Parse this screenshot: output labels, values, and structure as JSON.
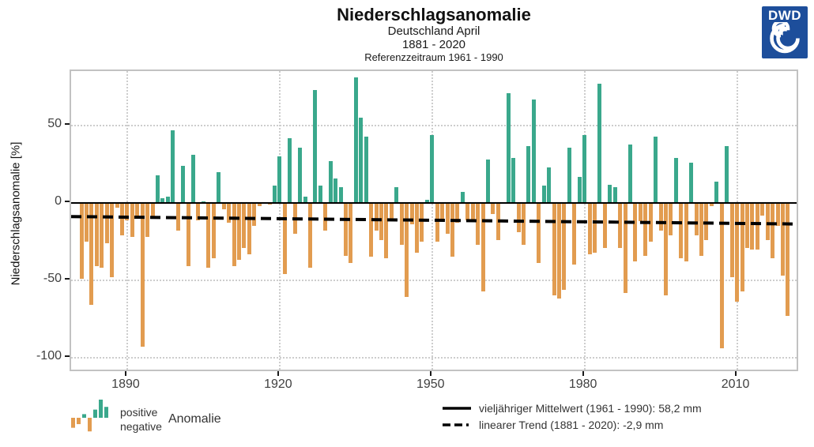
{
  "header": {
    "title": "Niederschlagsanomalie",
    "subtitle1": "Deutschland April",
    "subtitle2": "1881 - 2020",
    "subtitle3": "Referenzzeitraum 1961 - 1990"
  },
  "logo": {
    "text": "DWD",
    "color": "#1d4e9b"
  },
  "y_axis": {
    "title": "Niederschlagsanomalie [%]",
    "ticks": [
      {
        "label": "50",
        "value": 50
      },
      {
        "label": "0",
        "value": 0
      },
      {
        "label": "-50",
        "value": -50
      },
      {
        "label": "-100",
        "value": -100
      }
    ]
  },
  "x_axis": {
    "ticks": [
      {
        "label": "1890",
        "value": 1890
      },
      {
        "label": "1920",
        "value": 1920
      },
      {
        "label": "1950",
        "value": 1950
      },
      {
        "label": "1980",
        "value": 1980
      },
      {
        "label": "2010",
        "value": 2010
      }
    ]
  },
  "legend_left": {
    "positive": "positive",
    "negative": "negative",
    "anomalie": "Anomalie"
  },
  "legend_right": {
    "mean": "vieljähriger Mittelwert (1961 - 1990): 58,2 mm",
    "trend": "linearer Trend (1881 - 2020): -2,9 mm"
  },
  "chart_data": {
    "type": "bar",
    "title": "Niederschlagsanomalie",
    "subtitle": "Deutschland April 1881 - 2020, Referenzzeitraum 1961 - 1990",
    "ylabel": "Niederschlagsanomalie [%]",
    "ylim": [
      -110,
      86
    ],
    "x_start": 1881,
    "x_end": 2020,
    "years": [
      1881,
      1882,
      1883,
      1884,
      1885,
      1886,
      1887,
      1888,
      1889,
      1890,
      1891,
      1892,
      1893,
      1894,
      1895,
      1896,
      1897,
      1898,
      1899,
      1900,
      1901,
      1902,
      1903,
      1904,
      1905,
      1906,
      1907,
      1908,
      1909,
      1910,
      1911,
      1912,
      1913,
      1914,
      1915,
      1916,
      1917,
      1918,
      1919,
      1920,
      1921,
      1922,
      1923,
      1924,
      1925,
      1926,
      1927,
      1928,
      1929,
      1930,
      1931,
      1932,
      1933,
      1934,
      1935,
      1936,
      1937,
      1938,
      1939,
      1940,
      1941,
      1942,
      1943,
      1944,
      1945,
      1946,
      1947,
      1948,
      1949,
      1950,
      1951,
      1952,
      1953,
      1954,
      1955,
      1956,
      1957,
      1958,
      1959,
      1960,
      1961,
      1962,
      1963,
      1964,
      1965,
      1966,
      1967,
      1968,
      1969,
      1970,
      1971,
      1972,
      1973,
      1974,
      1975,
      1976,
      1977,
      1978,
      1979,
      1980,
      1981,
      1982,
      1983,
      1984,
      1985,
      1986,
      1987,
      1988,
      1989,
      1990,
      1991,
      1992,
      1993,
      1994,
      1995,
      1996,
      1997,
      1998,
      1999,
      2000,
      2001,
      2002,
      2003,
      2004,
      2005,
      2006,
      2007,
      2008,
      2009,
      2010,
      2011,
      2012,
      2013,
      2014,
      2015,
      2016,
      2017,
      2018,
      2019,
      2020
    ],
    "values": [
      -49,
      -25,
      -66,
      -41,
      -42,
      -26,
      -48,
      -3,
      -21,
      -11,
      -22,
      -10,
      -93,
      -22,
      -10,
      18,
      3,
      4,
      47,
      -18,
      24,
      -41,
      31,
      -11,
      1,
      -42,
      -36,
      20,
      -4,
      -13,
      -41,
      -37,
      -29,
      -33,
      -15,
      -2,
      0,
      -1,
      11,
      30,
      -46,
      42,
      -20,
      36,
      4,
      -42,
      73,
      11,
      -18,
      27,
      16,
      10,
      -34,
      -39,
      81,
      55,
      43,
      -35,
      -18,
      -24,
      -36,
      -10,
      10,
      -27,
      -61,
      -14,
      -32,
      -25,
      2,
      44,
      -25,
      -10,
      -20,
      -35,
      -13,
      7,
      -11,
      -11,
      -27,
      -57,
      28,
      -7,
      -24,
      0,
      71,
      29,
      -19,
      -27,
      37,
      67,
      -39,
      11,
      23,
      -60,
      -62,
      -56,
      36,
      -40,
      17,
      44,
      -33,
      -32,
      77,
      -29,
      12,
      10,
      -29,
      -58,
      38,
      -38,
      -12,
      -34,
      -25,
      43,
      -18,
      -60,
      -21,
      29,
      -36,
      -38,
      26,
      -21,
      -34,
      -24,
      -2,
      14,
      -94,
      37,
      -48,
      -64,
      -57,
      -29,
      -30,
      -30,
      -8,
      -24,
      -36,
      -15,
      -47,
      -73
    ],
    "reference_mean_mm": "58,2 mm",
    "linear_trend_mm": "-2,9 mm",
    "trend_line": {
      "start_value": -8.8,
      "end_value": -13.6
    },
    "baseline_value": 0,
    "colors": {
      "positive": "#3aa88c",
      "negative": "#e29c50"
    },
    "grid": "dotted",
    "legend_position": "bottom"
  }
}
